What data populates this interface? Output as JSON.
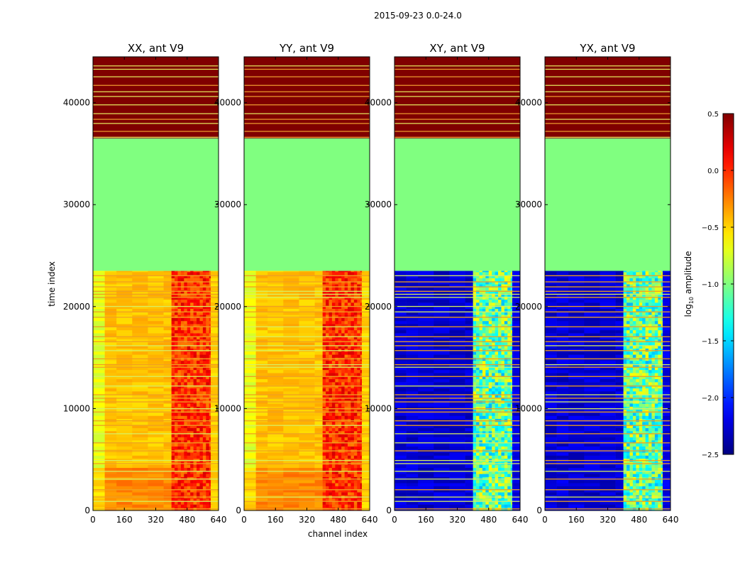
{
  "figure": {
    "suptitle": "2015-09-23 0.0-24.0"
  },
  "chart_data": {
    "type": "heatmap",
    "colormap": "jet",
    "xlabel": "channel index",
    "ylabel": "time index",
    "xlim": [
      0,
      640
    ],
    "ylim": [
      0,
      44500
    ],
    "xticks": [
      0,
      160,
      320,
      480,
      640
    ],
    "yticks": [
      0,
      10000,
      20000,
      30000,
      40000
    ],
    "panels": [
      {
        "title": "XX, ant V9",
        "kind": "parallel"
      },
      {
        "title": "YY, ant V9",
        "kind": "parallel"
      },
      {
        "title": "XY, ant V9",
        "kind": "cross"
      },
      {
        "title": "YX, ant V9",
        "kind": "cross"
      }
    ],
    "data_extent_time": [
      0,
      23500
    ],
    "flag_fill_range": [
      23500,
      36500
    ],
    "flag_fill_value": -1.0,
    "saturated_range": [
      36500,
      44500
    ],
    "saturated_value": 0.5,
    "rfi_channel_range": [
      400,
      600
    ],
    "colorbar": {
      "label": "log10 amplitude",
      "label_main": "log",
      "label_sub": "10",
      "label_rest": " amplitude",
      "min": -2.5,
      "max": 0.5,
      "ticks": [
        0.5,
        0.0,
        -0.5,
        -1.0,
        -1.5,
        -2.0,
        -2.5
      ],
      "tick_labels": [
        "0.5",
        "0.0",
        "−0.5",
        "−1.0",
        "−1.5",
        "−2.0",
        "−2.5"
      ]
    }
  }
}
